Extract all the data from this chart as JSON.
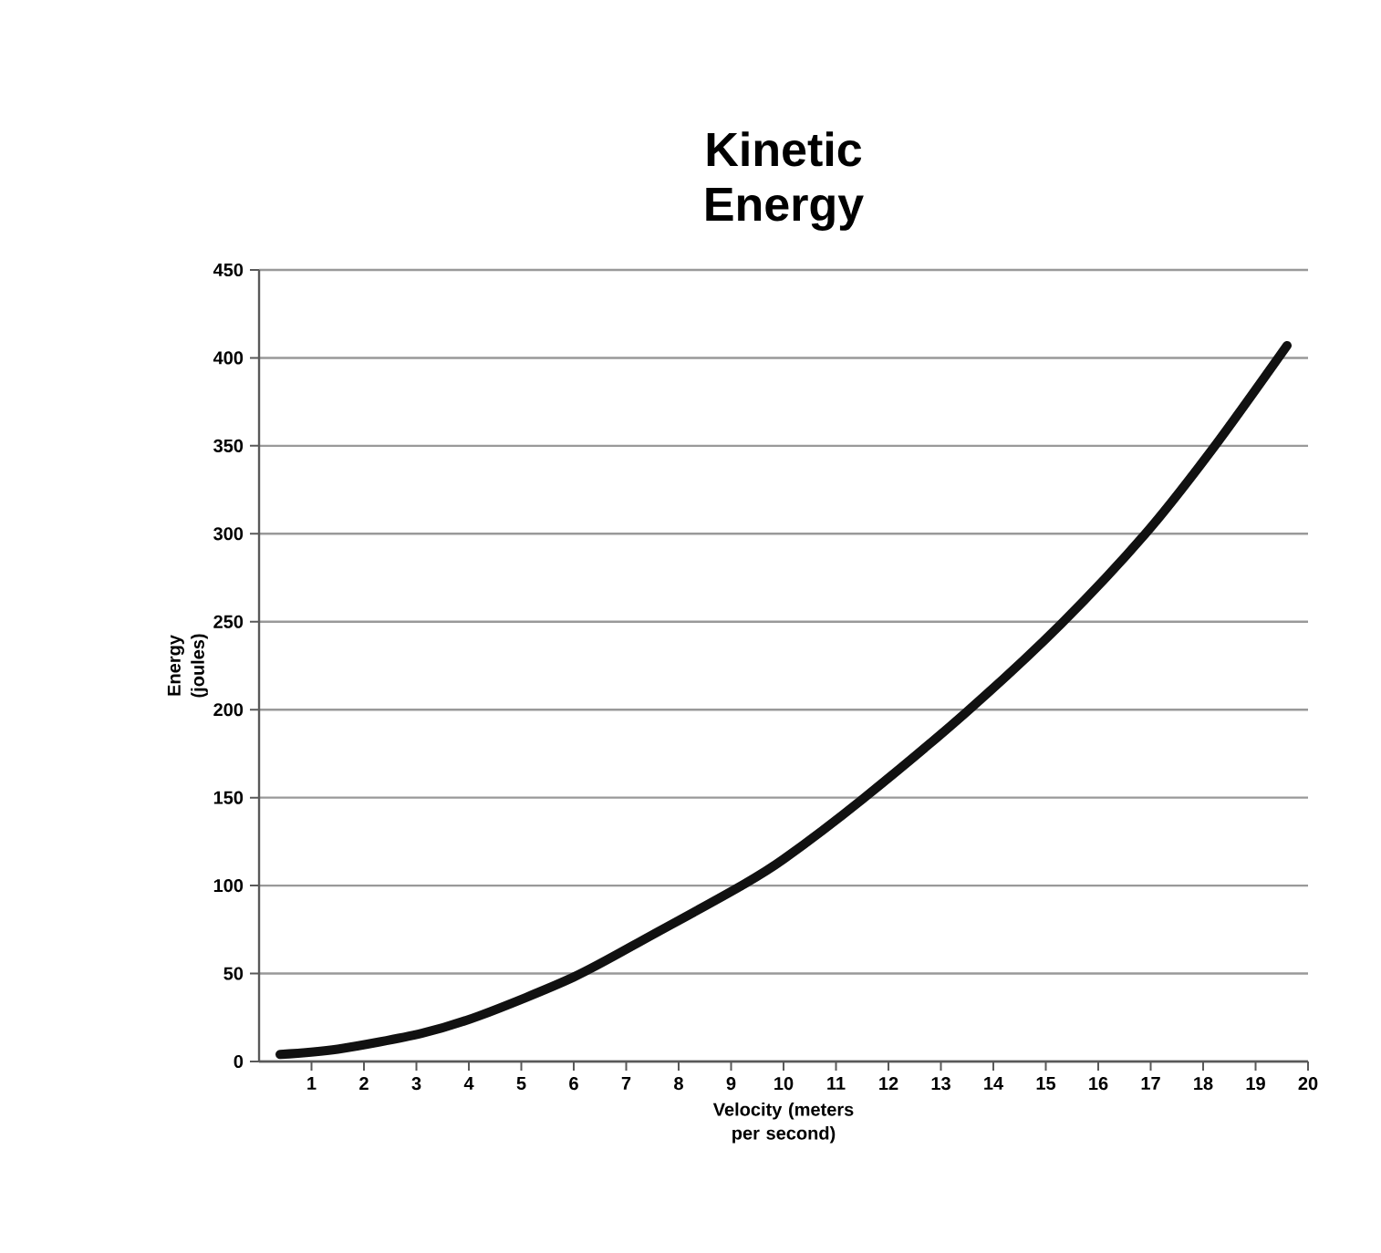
{
  "chart_data": {
    "type": "line",
    "title": "Kinetic Energy",
    "xlabel": "Velocity (meters per second)",
    "ylabel": "Energy (joules)",
    "series": [
      {
        "color": "#111111",
        "x": [
          0.4,
          1.5,
          3.1,
          4.2,
          6,
          7.5,
          9.2,
          10,
          11.5,
          13.5,
          15.3,
          16.9,
          18.2,
          19.6
        ],
        "values": [
          4,
          7,
          16,
          26,
          48,
          72,
          100,
          115,
          149,
          199,
          249,
          300,
          349,
          407
        ]
      }
    ],
    "xlim": [
      0,
      20
    ],
    "xticks": [
      1,
      2,
      3,
      4,
      5,
      6,
      7,
      8,
      9,
      10,
      11,
      12,
      13,
      14,
      15,
      16,
      17,
      18,
      19,
      20
    ],
    "ylim": [
      0,
      450
    ],
    "yticks": [
      0,
      50,
      100,
      150,
      200,
      250,
      300,
      350,
      400,
      450
    ],
    "grid": "y",
    "marker": "none",
    "line_style": "solid"
  }
}
